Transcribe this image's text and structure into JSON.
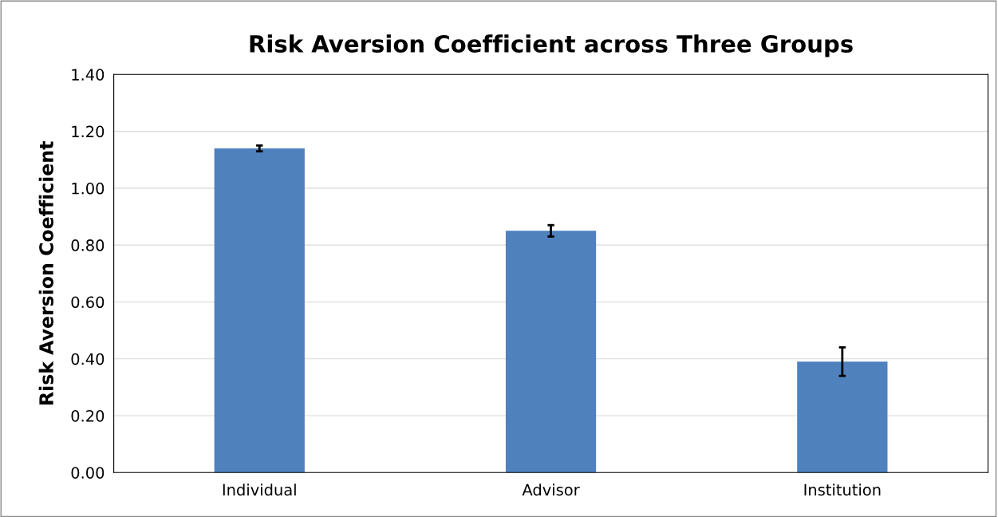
{
  "chart_data": {
    "type": "bar",
    "title": "Risk Aversion Coefficient across Three Groups",
    "ylabel": "Risk Aversion Coefficient",
    "categories": [
      "Individual",
      "Advisor",
      "Institution"
    ],
    "values": [
      1.14,
      0.85,
      0.39
    ],
    "errors": [
      0.01,
      0.02,
      0.05
    ],
    "color": "#4f81bd",
    "ylim": [
      0,
      1.4
    ],
    "yticks": [
      {
        "value": 0,
        "label": "0.00"
      },
      {
        "value": 0.2,
        "label": "0.20"
      },
      {
        "value": 0.4,
        "label": "0.40"
      },
      {
        "value": 0.6,
        "label": "0.60"
      },
      {
        "value": 0.8,
        "label": "0.80"
      },
      {
        "value": 1.0,
        "label": "1.00"
      },
      {
        "value": 1.2,
        "label": "1.20"
      },
      {
        "value": 1.4,
        "label": "1.40"
      }
    ],
    "grid": "y"
  }
}
